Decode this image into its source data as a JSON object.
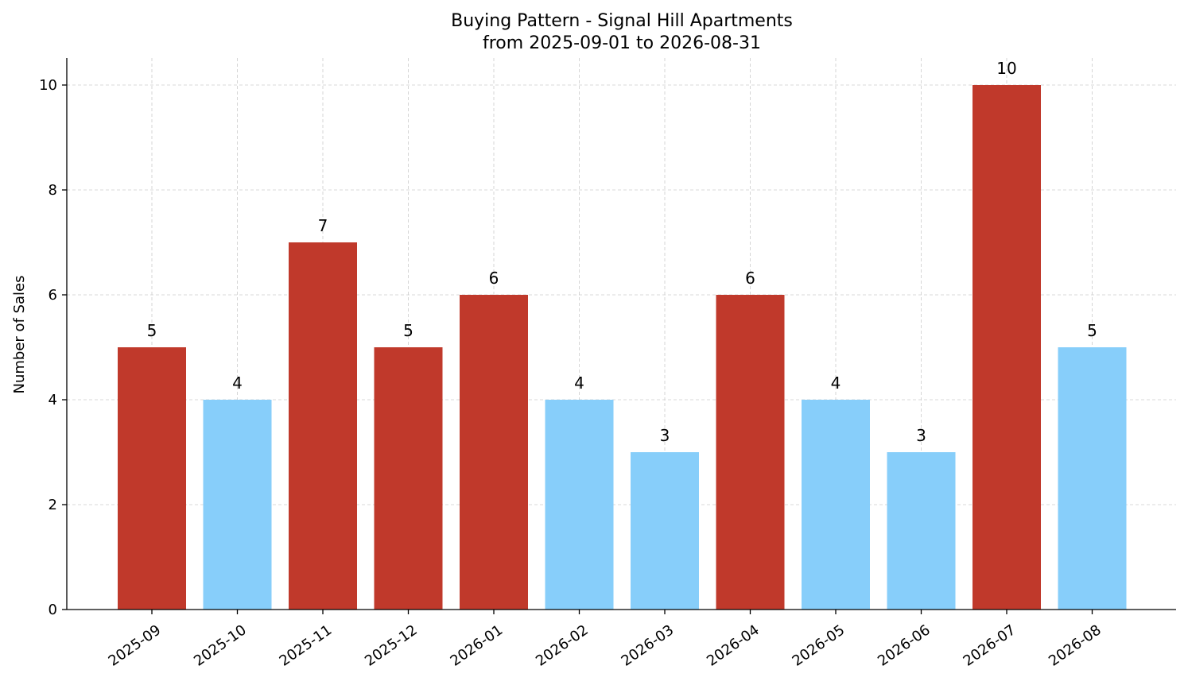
{
  "chart_data": {
    "type": "bar",
    "title": "Buying Pattern - Signal Hill Apartments",
    "subtitle": "from 2025-09-01 to 2026-08-31",
    "xlabel": "",
    "ylabel": "Number of Sales",
    "categories": [
      "2025-09",
      "2025-10",
      "2025-11",
      "2025-12",
      "2026-01",
      "2026-02",
      "2026-03",
      "2026-04",
      "2026-05",
      "2026-06",
      "2026-07",
      "2026-08"
    ],
    "values": [
      5,
      4,
      7,
      5,
      6,
      4,
      3,
      6,
      4,
      3,
      10,
      5
    ],
    "bar_colors": [
      "#c0392b",
      "#87cefa",
      "#c0392b",
      "#c0392b",
      "#c0392b",
      "#87cefa",
      "#87cefa",
      "#c0392b",
      "#87cefa",
      "#87cefa",
      "#c0392b",
      "#87cefa"
    ],
    "ylim": [
      0,
      10.5
    ],
    "yticks": [
      0,
      2,
      4,
      6,
      8,
      10
    ],
    "grid": true,
    "data_labels": true
  }
}
